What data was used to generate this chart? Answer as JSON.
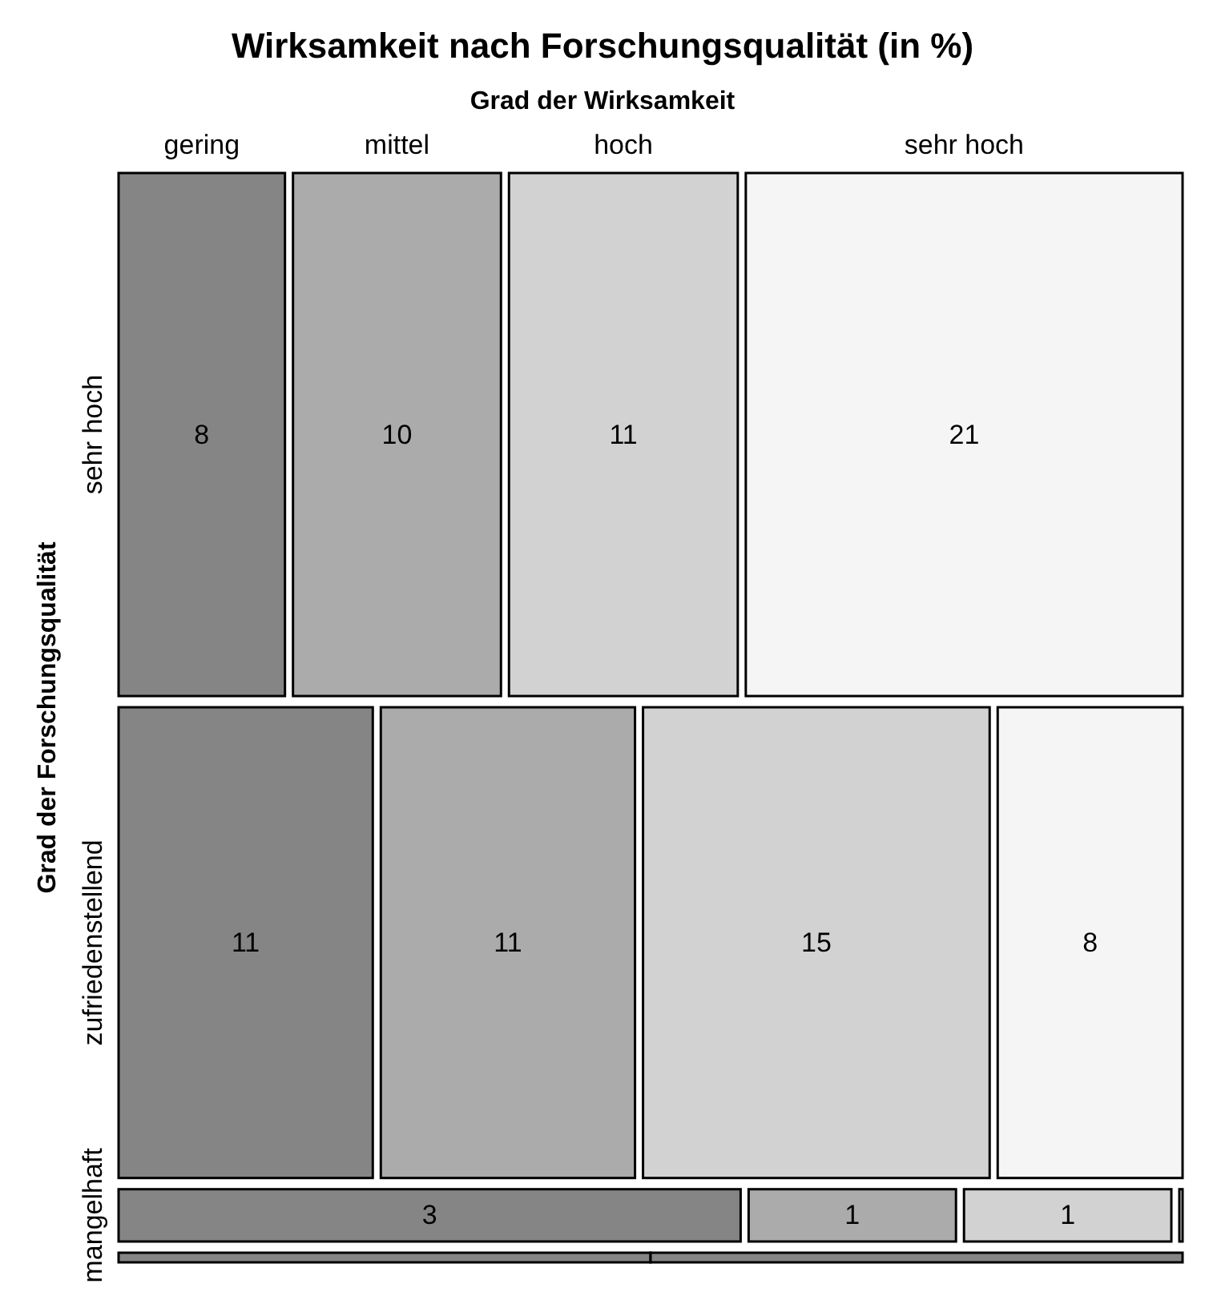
{
  "chart_data": {
    "type": "other",
    "title": "Wirksamkeit nach Forschungsqualität (in %)",
    "xlabel": "Grad der Wirksamkeit",
    "ylabel": "Grad der Forschungsqualität",
    "categories": [
      "sehr hoch",
      "zufriedenstellend",
      "mangelhaft",
      null
    ],
    "series": [
      {
        "name": "gering",
        "color": "#858585",
        "values": [
          8,
          11,
          3,
          null
        ]
      },
      {
        "name": "mittel",
        "color": "#ababab",
        "values": [
          10,
          11,
          1,
          null
        ]
      },
      {
        "name": "hoch",
        "color": "#d2d2d2",
        "values": [
          11,
          15,
          1,
          null
        ]
      },
      {
        "name": "sehr hoch",
        "color": "#f5f5f5",
        "values": [
          21,
          8,
          null,
          null
        ]
      }
    ],
    "data_labels": true
  }
}
